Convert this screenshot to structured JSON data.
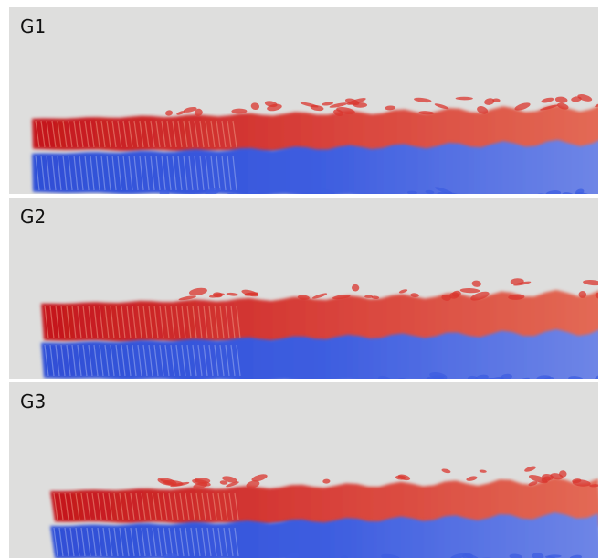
{
  "panels": [
    {
      "label": "G1"
    },
    {
      "label": "G2"
    },
    {
      "label": "G3"
    }
  ]
}
